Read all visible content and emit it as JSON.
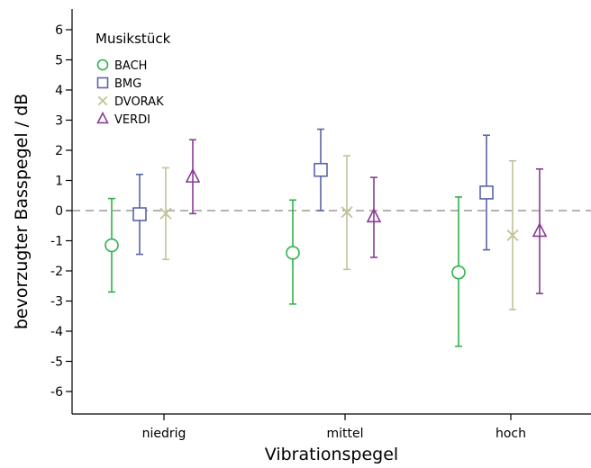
{
  "chart_data": {
    "type": "scatter",
    "title": "",
    "xlabel": "Vibrationspegel",
    "ylabel": "bevorzugter Basspegel / dB",
    "categories": [
      "niedrig",
      "mittel",
      "hoch"
    ],
    "ylim": [
      -6.7,
      6.5
    ],
    "yticks": [
      6,
      5,
      4,
      3,
      2,
      1,
      0,
      -1,
      -2,
      -3,
      -4,
      -5,
      -6
    ],
    "yticklabels": [
      "6",
      "5",
      "4",
      "3",
      "2",
      "1",
      "0",
      "-1",
      "-2",
      "-3",
      "-4",
      "-5",
      "-6"
    ],
    "reference_line": {
      "y": 0,
      "style": "dashed",
      "color": "#9a9a9a"
    },
    "grid": false,
    "legend": {
      "title": "Musikstück",
      "placement": "top-left"
    },
    "series": [
      {
        "name": "BACH",
        "marker": "circle",
        "color": "#2db34a",
        "mean": [
          -1.15,
          -1.4,
          -2.05
        ],
        "lower": [
          -2.7,
          -3.1,
          -4.5
        ],
        "upper": [
          0.4,
          0.35,
          0.45
        ]
      },
      {
        "name": "BMG",
        "marker": "square",
        "color": "#5a64a8",
        "mean": [
          -0.12,
          1.35,
          0.6
        ],
        "lower": [
          -1.45,
          0.0,
          -1.3
        ],
        "upper": [
          1.2,
          2.7,
          2.5
        ]
      },
      {
        "name": "DVORAK",
        "marker": "x",
        "color": "#c2c29a",
        "mean": [
          -0.1,
          -0.05,
          -0.82
        ],
        "lower": [
          -1.62,
          -1.95,
          -3.28
        ],
        "upper": [
          1.42,
          1.82,
          1.65
        ]
      },
      {
        "name": "VERDI",
        "marker": "triangle",
        "color": "#8a3a96",
        "mean": [
          1.12,
          -0.2,
          -0.68
        ],
        "lower": [
          -0.1,
          -1.55,
          -2.75
        ],
        "upper": [
          2.35,
          1.1,
          1.38
        ]
      }
    ]
  }
}
